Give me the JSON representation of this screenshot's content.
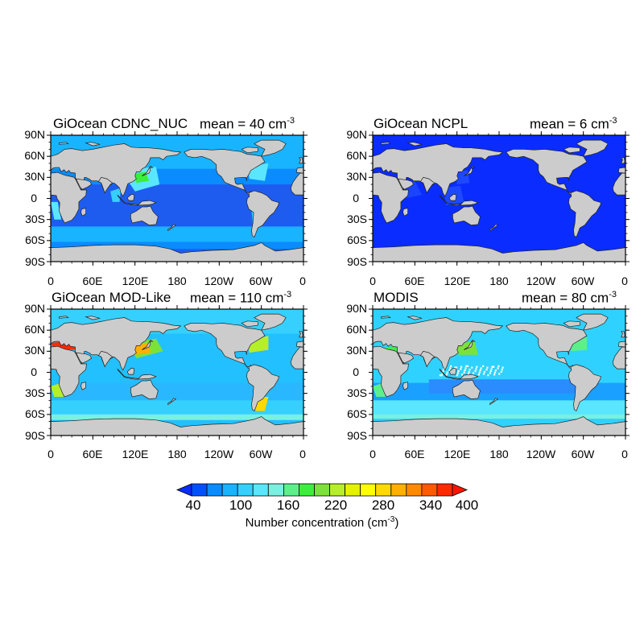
{
  "panels": [
    {
      "id": "p1",
      "title": "GiOcean CDNC_NUC",
      "mean_prefix": "mean = 40 cm",
      "mean_exp": "-3",
      "palette": "nuc"
    },
    {
      "id": "p2",
      "title": "GiOcean NCPL",
      "mean_prefix": "mean = 6 cm",
      "mean_exp": "-3",
      "palette": "ncpl"
    },
    {
      "id": "p3",
      "title": "GiOcean MOD-Like",
      "mean_prefix": "mean = 110 cm",
      "mean_exp": "-3",
      "palette": "modlike"
    },
    {
      "id": "p4",
      "title": "MODIS",
      "mean_prefix": "mean = 80 cm",
      "mean_exp": "-3",
      "palette": "modis"
    }
  ],
  "lat_ticks": [
    "90N",
    "60N",
    "30N",
    "0",
    "30S",
    "60S",
    "90S"
  ],
  "lon_ticks": [
    "0",
    "60E",
    "120E",
    "180",
    "120W",
    "60W",
    "0"
  ],
  "colorbar": {
    "labels": [
      "40",
      "100",
      "160",
      "220",
      "280",
      "340",
      "400"
    ],
    "title_prefix": "Number concentration (cm",
    "title_exp": "-3",
    "title_suffix": ")",
    "colors": [
      "#0050ff",
      "#0a8cff",
      "#19b4ff",
      "#36d0ff",
      "#5ae6ff",
      "#7af0e0",
      "#5cf08a",
      "#3cee3c",
      "#7ce23a",
      "#b6ee2a",
      "#e4f200",
      "#ffff00",
      "#ffd900",
      "#ffb000",
      "#ff8a00",
      "#ff5a00",
      "#ff2a00"
    ],
    "under_color": "#0a2cff",
    "over_color": "#ff1400"
  },
  "colors": {
    "land": "#cccccc",
    "ncpl_ocean": "#0a2cff",
    "low": "#1e5cf0",
    "mid": "#3fa8ff",
    "high": "#ff3000"
  }
}
